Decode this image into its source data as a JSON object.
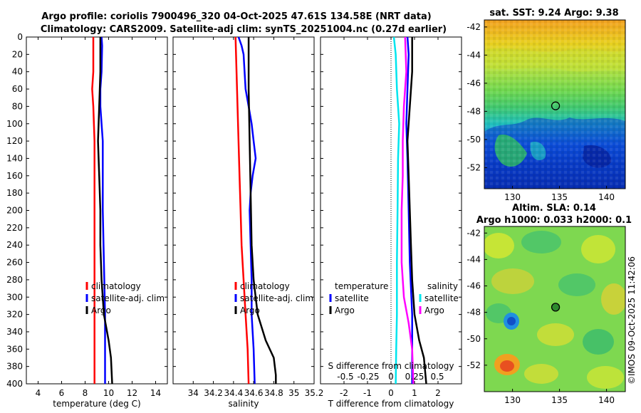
{
  "header": {
    "title_line1": "Argo profile: coriolis 7900496_320 04-Oct-2025 47.61S 134.58E (NRT data)",
    "title_line2": "Climatology: CARS2009. Satellite-adj clim: synTS_20251004.nc (0.27d earlier)"
  },
  "depth_axis": {
    "ylim": [
      0,
      400
    ],
    "ticks": [
      0,
      20,
      40,
      60,
      80,
      100,
      120,
      140,
      160,
      180,
      200,
      220,
      240,
      260,
      280,
      300,
      320,
      340,
      360,
      380,
      400
    ]
  },
  "colors": {
    "climatology": "#ff0000",
    "satellite": "#0000ff",
    "argo": "#000000",
    "salinity_satellite": "#00e5ee",
    "salinity_argo": "#ff00ff",
    "marker_fill": "#2e8b2e"
  },
  "chart_data": [
    {
      "type": "line",
      "id": "temperature",
      "xlabel": "temperature (deg C)",
      "xlim": [
        3,
        15
      ],
      "xticks": [
        4,
        6,
        8,
        10,
        12,
        14
      ],
      "ylim": [
        0,
        400
      ],
      "legend": [
        "climatology",
        "satellite-adj. clim",
        "Argo"
      ],
      "series": [
        {
          "name": "climatology",
          "color": "#ff0000",
          "points": [
            [
              8.7,
              0
            ],
            [
              8.7,
              40
            ],
            [
              8.6,
              60
            ],
            [
              8.7,
              80
            ],
            [
              8.8,
              120
            ],
            [
              8.8,
              200
            ],
            [
              8.8,
              300
            ],
            [
              8.8,
              400
            ]
          ]
        },
        {
          "name": "satellite-adj. clim",
          "color": "#0000ff",
          "points": [
            [
              9.4,
              0
            ],
            [
              9.45,
              10
            ],
            [
              9.4,
              40
            ],
            [
              9.3,
              60
            ],
            [
              9.3,
              80
            ],
            [
              9.4,
              100
            ],
            [
              9.5,
              120
            ],
            [
              9.5,
              200
            ],
            [
              9.6,
              260
            ],
            [
              9.7,
              320
            ],
            [
              9.7,
              400
            ]
          ]
        },
        {
          "name": "Argo",
          "color": "#000000",
          "points": [
            [
              9.3,
              0
            ],
            [
              9.3,
              40
            ],
            [
              9.2,
              80
            ],
            [
              9.1,
              120
            ],
            [
              9.2,
              160
            ],
            [
              9.3,
              200
            ],
            [
              9.3,
              240
            ],
            [
              9.4,
              280
            ],
            [
              9.6,
              320
            ],
            [
              10.0,
              350
            ],
            [
              10.2,
              370
            ],
            [
              10.3,
              400
            ]
          ]
        }
      ]
    },
    {
      "type": "line",
      "id": "salinity",
      "xlabel": "salinity",
      "xlim": [
        33.8,
        35.2
      ],
      "xticks": [
        34,
        34.2,
        34.4,
        34.6,
        34.8,
        35,
        35.2
      ],
      "ylim": [
        0,
        400
      ],
      "legend": [
        "climatology",
        "satellite-adj. clim",
        "Argo"
      ],
      "series": [
        {
          "name": "climatology",
          "color": "#ff0000",
          "points": [
            [
              34.42,
              0
            ],
            [
              34.43,
              40
            ],
            [
              34.44,
              80
            ],
            [
              34.45,
              120
            ],
            [
              34.46,
              160
            ],
            [
              34.47,
              200
            ],
            [
              34.48,
              240
            ],
            [
              34.5,
              280
            ],
            [
              34.52,
              320
            ],
            [
              34.54,
              360
            ],
            [
              34.55,
              400
            ]
          ]
        },
        {
          "name": "satellite-adj. clim",
          "color": "#0000ff",
          "points": [
            [
              34.45,
              0
            ],
            [
              34.48,
              10
            ],
            [
              34.5,
              20
            ],
            [
              34.51,
              40
            ],
            [
              34.52,
              60
            ],
            [
              34.55,
              80
            ],
            [
              34.58,
              100
            ],
            [
              34.6,
              120
            ],
            [
              34.62,
              140
            ],
            [
              34.59,
              160
            ],
            [
              34.57,
              180
            ],
            [
              34.56,
              200
            ],
            [
              34.57,
              240
            ],
            [
              34.58,
              280
            ],
            [
              34.58,
              320
            ],
            [
              34.6,
              360
            ],
            [
              34.61,
              400
            ]
          ]
        },
        {
          "name": "Argo",
          "color": "#000000",
          "points": [
            [
              34.55,
              0
            ],
            [
              34.55,
              60
            ],
            [
              34.56,
              120
            ],
            [
              34.57,
              180
            ],
            [
              34.58,
              240
            ],
            [
              34.6,
              280
            ],
            [
              34.64,
              320
            ],
            [
              34.72,
              350
            ],
            [
              34.8,
              370
            ],
            [
              34.82,
              390
            ],
            [
              34.82,
              400
            ]
          ]
        }
      ]
    },
    {
      "type": "line",
      "id": "difference",
      "xlabel": "T difference from climatology",
      "xlim": [
        -3,
        3
      ],
      "xticks": [
        -2,
        -1,
        0,
        1,
        2
      ],
      "ylim": [
        0,
        400
      ],
      "top_label": "S difference from climatology",
      "top_ticks": [
        "-0.5",
        "-0.25",
        "0",
        "0.25",
        "0.5"
      ],
      "legend_temperature": {
        "title": "temperature",
        "items": [
          "satellite",
          "Argo"
        ]
      },
      "legend_salinity": {
        "title": "salinity",
        "items": [
          "satellite",
          "Argo"
        ]
      },
      "series": [
        {
          "name": "T satellite",
          "color": "#0000ff",
          "points": [
            [
              0.7,
              0
            ],
            [
              0.75,
              20
            ],
            [
              0.7,
              60
            ],
            [
              0.65,
              100
            ],
            [
              0.7,
              140
            ],
            [
              0.75,
              200
            ],
            [
              0.8,
              260
            ],
            [
              0.9,
              320
            ],
            [
              0.9,
              400
            ]
          ]
        },
        {
          "name": "T Argo",
          "color": "#000000",
          "points": [
            [
              0.9,
              0
            ],
            [
              0.9,
              40
            ],
            [
              0.8,
              80
            ],
            [
              0.7,
              120
            ],
            [
              0.75,
              160
            ],
            [
              0.8,
              200
            ],
            [
              0.85,
              240
            ],
            [
              0.9,
              280
            ],
            [
              1.0,
              320
            ],
            [
              1.2,
              350
            ],
            [
              1.4,
              370
            ],
            [
              1.5,
              400
            ]
          ]
        },
        {
          "name": "S satellite",
          "color": "#00e5ee",
          "points": [
            [
              0.12,
              0
            ],
            [
              0.2,
              20
            ],
            [
              0.25,
              60
            ],
            [
              0.35,
              100
            ],
            [
              0.3,
              140
            ],
            [
              0.28,
              200
            ],
            [
              0.25,
              260
            ],
            [
              0.25,
              320
            ],
            [
              0.22,
              360
            ],
            [
              0.2,
              400
            ]
          ]
        },
        {
          "name": "S Argo",
          "color": "#ff00ff",
          "points": [
            [
              0.6,
              0
            ],
            [
              0.65,
              40
            ],
            [
              0.55,
              80
            ],
            [
              0.5,
              120
            ],
            [
              0.5,
              160
            ],
            [
              0.45,
              200
            ],
            [
              0.45,
              260
            ],
            [
              0.55,
              300
            ],
            [
              0.75,
              330
            ],
            [
              0.9,
              360
            ],
            [
              0.95,
              400
            ]
          ]
        }
      ]
    }
  ],
  "sst_map": {
    "title": "sat. SST: 9.24 Argo: 9.38",
    "xlim": [
      127,
      142
    ],
    "ylim": [
      -53.5,
      -41.5
    ],
    "xticks": [
      130,
      135,
      140
    ],
    "yticks": [
      -42,
      -44,
      -46,
      -48,
      -50,
      -52
    ],
    "marker": {
      "lon": 134.58,
      "lat": -47.61
    }
  },
  "sla_map": {
    "title_line1": "Altim. SLA: 0.14",
    "title_line2": "Argo h1000: 0.033 h2000: 0.1",
    "xlim": [
      127,
      142
    ],
    "ylim": [
      -54,
      -41.5
    ],
    "xticks": [
      130,
      135,
      140
    ],
    "yticks": [
      -42,
      -44,
      -46,
      -48,
      -50,
      -52
    ],
    "marker": {
      "lon": 134.58,
      "lat": -47.61
    }
  },
  "credit": "©IMOS 09-Oct-2025 11:42:06"
}
